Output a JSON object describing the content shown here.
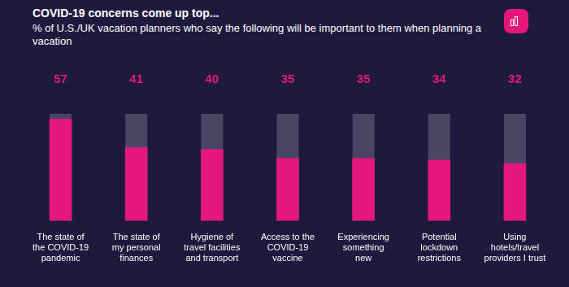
{
  "chart_data": {
    "type": "bar",
    "title": "COVID-19 concerns come up top...",
    "subtitle": "% of U.S./UK vacation planners who say the following will be important to them when planning a vacation",
    "categories": [
      [
        "The state of",
        "the COVID-19",
        "pandemic"
      ],
      [
        "The state of",
        "my personal",
        "finances"
      ],
      [
        "Hygiene of",
        "travel facilities",
        "and transport"
      ],
      [
        "Access to the",
        "COVID-19",
        "vaccine"
      ],
      [
        "Experiencing",
        "something",
        "new"
      ],
      [
        "Potential",
        "lockdown",
        "restrictions"
      ],
      [
        "Using",
        "hotels/travel",
        "providers I trust"
      ]
    ],
    "values": [
      57,
      41,
      40,
      35,
      35,
      34,
      32
    ],
    "color": "#e5177b",
    "ylim": [
      0,
      60
    ],
    "grid": false,
    "data_labels": true,
    "tick_labels": "x"
  }
}
